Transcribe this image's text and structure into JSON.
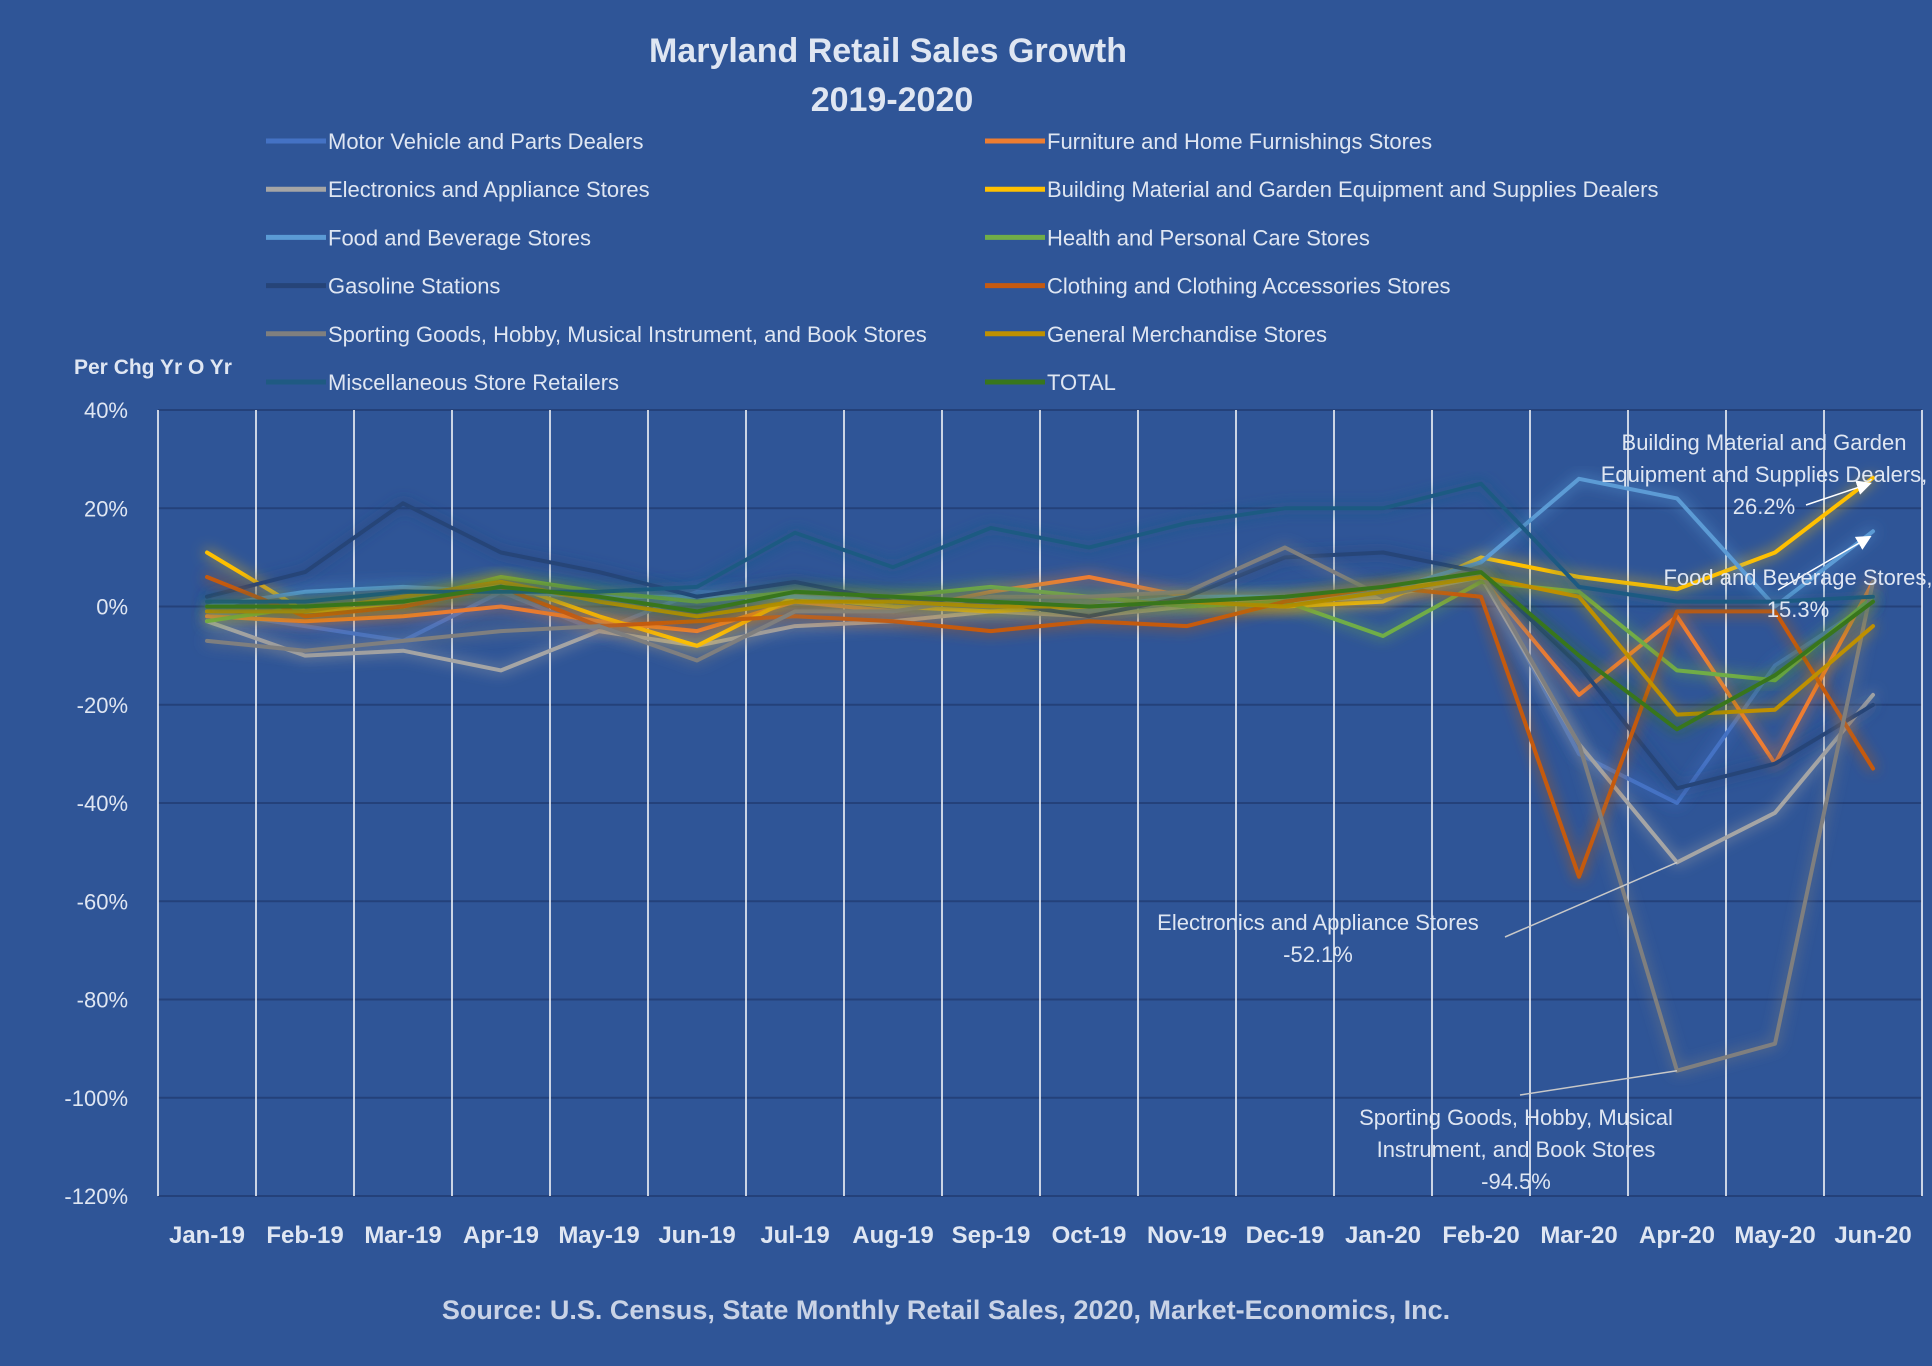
{
  "chart_data": {
    "type": "line",
    "title": "Maryland Retail Sales Growth",
    "subtitle": "2019-2020",
    "ylabel": "Per Chg Yr O Yr",
    "xlabel": "",
    "source": "Source: U.S. Census, State Monthly Retail Sales, 2020, Market-Economics, Inc.",
    "ylim": [
      -120,
      40
    ],
    "yticks": [
      40,
      20,
      0,
      -20,
      -40,
      -60,
      -80,
      -100,
      -120
    ],
    "ytick_labels": [
      "40%",
      "20%",
      "0%",
      "-20%",
      "-40%",
      "-60%",
      "-80%",
      "-100%",
      "-120%"
    ],
    "grid": true,
    "legend_position": "top",
    "categories": [
      "Jan-19",
      "Feb-19",
      "Mar-19",
      "Apr-19",
      "May-19",
      "Jun-19",
      "Jul-19",
      "Aug-19",
      "Sep-19",
      "Oct-19",
      "Nov-19",
      "Dec-19",
      "Jan-20",
      "Feb-20",
      "Mar-20",
      "Apr-20",
      "May-20",
      "Jun-20"
    ],
    "series": [
      {
        "name": "Motor Vehicle and Parts Dealers",
        "color": "#4472c4",
        "values": [
          -1,
          -4,
          -7,
          3,
          -5,
          3,
          2,
          1,
          0,
          -1,
          1,
          2,
          3,
          7,
          -30,
          -40,
          -12,
          1
        ]
      },
      {
        "name": "Furniture and Home Furnishings Stores",
        "color": "#ed7d31",
        "values": [
          -2,
          -3,
          -2,
          0,
          -3,
          -5,
          1,
          -1,
          3,
          6,
          2,
          1,
          3,
          6,
          -18,
          -2,
          -32,
          5
        ]
      },
      {
        "name": "Electronics and Appliance Stores",
        "color": "#a5a5a5",
        "values": [
          -3,
          -10,
          -9,
          -13,
          -5,
          -8,
          -4,
          -3,
          -1,
          -2,
          0,
          1,
          2,
          6,
          -28,
          -52.1,
          -42,
          -18
        ]
      },
      {
        "name": "Building Material and Garden Equipment and Supplies Dealers",
        "color": "#ffc000",
        "values": [
          11,
          -1,
          0,
          5,
          -2,
          -8,
          2,
          0,
          -1,
          0,
          1,
          0,
          1,
          10,
          6,
          3.5,
          11,
          26.2
        ]
      },
      {
        "name": "Food and Beverage Stores",
        "color": "#5b9bd5",
        "values": [
          0,
          3,
          4,
          3,
          2,
          2,
          2,
          1,
          1,
          0,
          2,
          2,
          3,
          9,
          26,
          22,
          0,
          15.3
        ]
      },
      {
        "name": "Health and Personal Care Stores",
        "color": "#70ad47",
        "values": [
          -3,
          0,
          1,
          6,
          3,
          1,
          3,
          2,
          4,
          2,
          0,
          1,
          -6,
          5,
          3,
          -13,
          -15,
          2
        ]
      },
      {
        "name": "Gasoline Stations",
        "color": "#264478",
        "values": [
          2,
          7,
          21,
          11,
          7,
          2,
          5,
          1,
          1,
          -2,
          2,
          10,
          11,
          7,
          -12,
          -37,
          -32,
          -20
        ]
      },
      {
        "name": "Clothing and Clothing Accessories Stores",
        "color": "#c55a11",
        "values": [
          6,
          -2,
          0,
          4,
          -4,
          -3,
          -2,
          -3,
          -5,
          -3,
          -4,
          1,
          4,
          2,
          -55,
          -1,
          -1,
          -33
        ]
      },
      {
        "name": "Sporting Goods, Hobby, Musical Instrument, and Book Stores",
        "color": "#7f7f7f",
        "values": [
          -7,
          -9,
          -7,
          -5,
          -4,
          -11,
          -1,
          -1,
          2,
          2,
          3,
          12,
          2,
          7,
          -28,
          -94.5,
          -89,
          5
        ]
      },
      {
        "name": "General Merchandise Stores",
        "color": "#bf9000",
        "values": [
          -1,
          -1,
          2,
          5,
          1,
          -2,
          1,
          1,
          0,
          0,
          1,
          0,
          3,
          6,
          2,
          -22,
          -21,
          -4
        ]
      },
      {
        "name": "Miscellaneous Store Retailers",
        "color": "#1f5a82",
        "values": [
          1,
          1,
          3,
          3,
          3,
          4,
          15,
          8,
          16,
          12,
          17,
          20,
          20,
          25,
          4,
          1,
          1,
          2
        ]
      },
      {
        "name": "TOTAL",
        "color": "#38761d",
        "values": [
          0,
          0,
          1,
          4,
          2,
          -1,
          3,
          2,
          1,
          0,
          1,
          2,
          4,
          7,
          -10,
          -25,
          -14,
          1
        ]
      }
    ],
    "annotations": [
      {
        "lines": [
          "Building Material and Garden",
          "Equipment and Supplies Dealers,",
          "26.2%"
        ],
        "series": "Building Material and Garden Equipment and Supplies Dealers",
        "point": "Jun-20",
        "value": 26.2
      },
      {
        "lines": [
          "Food and Beverage Stores,",
          "15.3%"
        ],
        "series": "Food and Beverage Stores",
        "point": "Jun-20",
        "value": 15.3
      },
      {
        "lines": [
          "Electronics and Appliance Stores",
          "-52.1%"
        ],
        "series": "Electronics and Appliance Stores",
        "point": "Apr-20",
        "value": -52.1
      },
      {
        "lines": [
          "Sporting Goods, Hobby, Musical",
          "Instrument, and Book Stores",
          "-94.5%"
        ],
        "series": "Sporting Goods, Hobby, Musical Instrument, and Book Stores",
        "point": "Apr-20",
        "value": -94.5
      }
    ]
  }
}
